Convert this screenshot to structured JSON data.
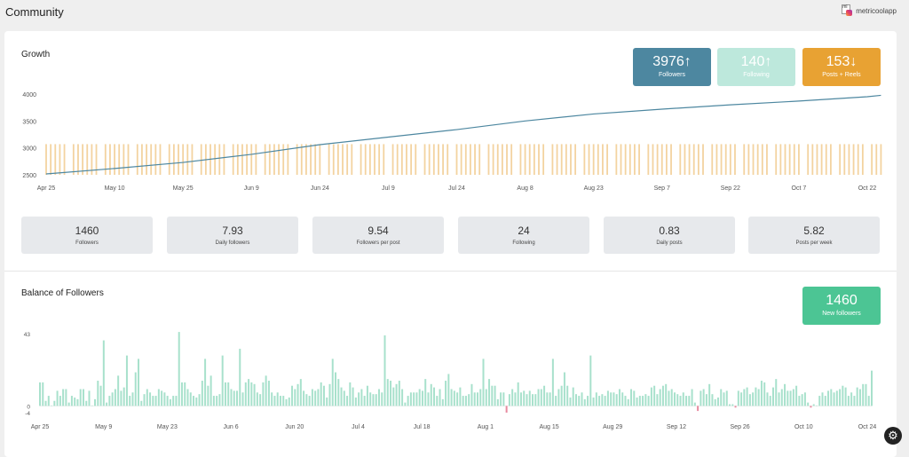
{
  "header": {
    "title": "Community",
    "account_name": "metricoolapp",
    "account_icon": "instagram-icon",
    "account_logo_text": "ml"
  },
  "growth": {
    "title": "Growth",
    "kpis": [
      {
        "value": "3976",
        "arrow": "↑",
        "label": "Followers",
        "color": "#4d87a0"
      },
      {
        "value": "140",
        "arrow": "↑",
        "label": "Following",
        "color": "#bde8dc"
      },
      {
        "value": "153",
        "arrow": "↓",
        "label": "Posts + Reels",
        "color": "#e8a233"
      }
    ]
  },
  "stats": [
    {
      "value": "1460",
      "label": "Followers"
    },
    {
      "value": "7.93",
      "label": "Daily followers"
    },
    {
      "value": "9.54",
      "label": "Followers per post"
    },
    {
      "value": "24",
      "label": "Following"
    },
    {
      "value": "0.83",
      "label": "Daily posts"
    },
    {
      "value": "5.82",
      "label": "Posts per week"
    }
  ],
  "balance": {
    "title": "Balance of Followers",
    "kpi": {
      "value": "1460",
      "label": "New followers",
      "color": "#4cc594"
    }
  },
  "chart_data": [
    {
      "type": "line",
      "title": "Growth",
      "ylim": [
        2500,
        4000
      ],
      "yticks": [
        2500,
        3000,
        3500,
        4000
      ],
      "x_ticks": [
        "Apr 25",
        "May 10",
        "May 25",
        "Jun 9",
        "Jun 24",
        "Jul 9",
        "Jul 24",
        "Aug 8",
        "Aug 23",
        "Sep 7",
        "Sep 22",
        "Oct 7",
        "Oct 22"
      ],
      "series": [
        {
          "type": "line",
          "color": "#4d87a0",
          "points": [
            [
              "Apr 25",
              2516
            ],
            [
              "May 10",
              2618
            ],
            [
              "May 25",
              2730
            ],
            [
              "Jun 9",
              2880
            ],
            [
              "Jun 24",
              3060
            ],
            [
              "Jul 9",
              3200
            ],
            [
              "Jul 24",
              3340
            ],
            [
              "Aug 8",
              3500
            ],
            [
              "Aug 23",
              3630
            ],
            [
              "Sep 7",
              3720
            ],
            [
              "Sep 22",
              3800
            ],
            [
              "Oct 7",
              3870
            ],
            [
              "Oct 22",
              3950
            ],
            [
              "Oct 25",
              3976
            ]
          ]
        },
        {
          "type": "bar",
          "color": "#f3d3a0",
          "description": "posts per day, bar top at ~3070 on most days, one peak near 3650 on Oct 22",
          "typical_top": 3070,
          "peak_top": 3650
        }
      ],
      "grid": false
    },
    {
      "type": "bar",
      "title": "Balance of Followers",
      "ylim": [
        -4,
        43
      ],
      "yticks": [
        -4,
        0,
        43
      ],
      "x_ticks": [
        "Apr 25",
        "May 9",
        "May 23",
        "Jun 6",
        "Jun 20",
        "Jul 4",
        "Jul 18",
        "Aug 1",
        "Aug 15",
        "Aug 29",
        "Sep 12",
        "Sep 26",
        "Oct 10",
        "Oct 24"
      ],
      "positive_color": "#a8e1cc",
      "negative_color": "#e88aa0",
      "values": [
        14,
        14,
        3,
        6,
        0,
        3,
        9,
        6,
        10,
        10,
        2,
        6,
        5,
        4,
        10,
        10,
        3,
        9,
        0,
        4,
        15,
        12,
        39,
        2,
        6,
        8,
        10,
        18,
        9,
        11,
        30,
        6,
        8,
        20,
        28,
        3,
        7,
        10,
        8,
        6,
        6,
        10,
        9,
        8,
        6,
        4,
        6,
        6,
        44,
        14,
        14,
        10,
        8,
        6,
        5,
        7,
        15,
        28,
        12,
        18,
        6,
        6,
        7,
        30,
        14,
        14,
        10,
        9,
        9,
        34,
        8,
        14,
        16,
        14,
        13,
        8,
        7,
        14,
        18,
        15,
        8,
        6,
        8,
        6,
        6,
        4,
        5,
        12,
        10,
        13,
        16,
        9,
        7,
        6,
        10,
        9,
        10,
        14,
        12,
        5,
        13,
        28,
        20,
        16,
        11,
        9,
        6,
        14,
        11,
        5,
        8,
        10,
        6,
        12,
        8,
        7,
        7,
        10,
        8,
        42,
        16,
        15,
        11,
        13,
        15,
        10,
        2,
        6,
        8,
        8,
        8,
        10,
        9,
        16,
        8,
        13,
        11,
        6,
        10,
        4,
        15,
        19,
        10,
        9,
        8,
        11,
        6,
        6,
        7,
        13,
        8,
        8,
        10,
        28,
        10,
        16,
        12,
        12,
        4,
        8,
        8,
        -4,
        7,
        10,
        8,
        14,
        8,
        9,
        7,
        9,
        7,
        7,
        10,
        10,
        12,
        8,
        8,
        28,
        6,
        10,
        12,
        20,
        12,
        5,
        11,
        7,
        6,
        8,
        4,
        6,
        30,
        5,
        8,
        6,
        7,
        6,
        9,
        8,
        8,
        7,
        10,
        8,
        6,
        4,
        10,
        9,
        5,
        6,
        6,
        7,
        6,
        11,
        12,
        7,
        10,
        12,
        13,
        9,
        10,
        8,
        7,
        6,
        8,
        6,
        6,
        10,
        2,
        -3,
        9,
        10,
        7,
        13,
        7,
        4,
        5,
        10,
        8,
        9,
        1,
        1,
        -1,
        9,
        8,
        10,
        11,
        7,
        8,
        11,
        10,
        15,
        14,
        8,
        6,
        11,
        16,
        8,
        10,
        13,
        9,
        9,
        10,
        12,
        6,
        7,
        8,
        2,
        -1,
        1,
        0,
        6,
        8,
        6,
        9,
        10,
        8,
        9,
        10,
        12,
        11,
        6,
        8,
        6,
        11,
        10,
        13,
        13,
        6,
        21
      ]
    }
  ]
}
